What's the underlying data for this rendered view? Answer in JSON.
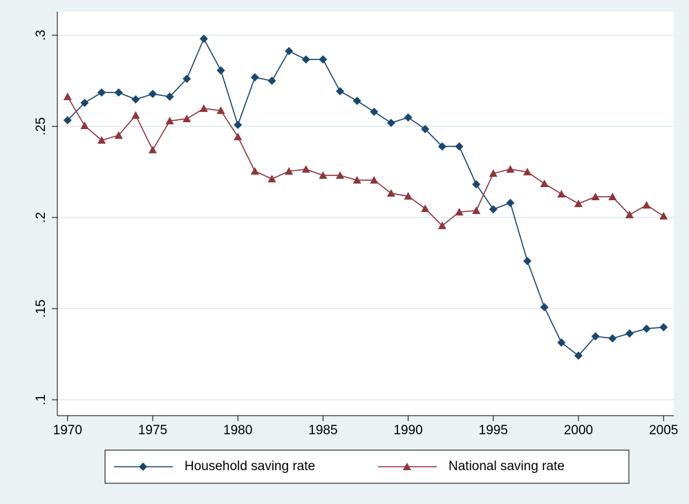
{
  "chart_data": {
    "type": "line",
    "x": [
      1970,
      1971,
      1972,
      1973,
      1974,
      1975,
      1976,
      1977,
      1978,
      1979,
      1980,
      1981,
      1982,
      1983,
      1984,
      1985,
      1986,
      1987,
      1988,
      1989,
      1990,
      1991,
      1992,
      1993,
      1994,
      1995,
      1996,
      1997,
      1998,
      1999,
      2000,
      2001,
      2002,
      2003,
      2004,
      2005
    ],
    "series": [
      {
        "name": "Household saving rate",
        "color": "#1a476f",
        "marker": "diamond",
        "values": [
          0.2534,
          0.2629,
          0.2686,
          0.2686,
          0.2648,
          0.2678,
          0.2663,
          0.2761,
          0.2981,
          0.2807,
          0.2508,
          0.2769,
          0.275,
          0.2913,
          0.2867,
          0.2867,
          0.2693,
          0.264,
          0.258,
          0.2519,
          0.2549,
          0.2485,
          0.239,
          0.239,
          0.2182,
          0.2045,
          0.208,
          0.1761,
          0.1508,
          0.1314,
          0.1242,
          0.1348,
          0.1337,
          0.1364,
          0.139,
          0.1398
        ]
      },
      {
        "name": "National saving rate",
        "color": "#90353b",
        "marker": "triangle",
        "values": [
          0.2663,
          0.2504,
          0.2424,
          0.2451,
          0.2561,
          0.2371,
          0.253,
          0.2542,
          0.2598,
          0.2587,
          0.2443,
          0.2254,
          0.2212,
          0.2254,
          0.2265,
          0.2231,
          0.2231,
          0.2205,
          0.2205,
          0.2133,
          0.2117,
          0.2049,
          0.1955,
          0.203,
          0.2038,
          0.2242,
          0.2265,
          0.225,
          0.2186,
          0.2129,
          0.2076,
          0.2114,
          0.2114,
          0.2015,
          0.2068,
          0.2008
        ]
      }
    ],
    "xlim": [
      1969.4,
      2005.6
    ],
    "xticks": [
      1970,
      1975,
      1980,
      1985,
      1990,
      1995,
      2000,
      2005
    ],
    "ylim": [
      0.0913,
      0.3129
    ],
    "yticks": [
      {
        "value": 0.1,
        "label": ".1"
      },
      {
        "value": 0.15,
        "label": ".15"
      },
      {
        "value": 0.2,
        "label": ".2"
      },
      {
        "value": 0.25,
        "label": ".25"
      },
      {
        "value": 0.3,
        "label": ".3"
      }
    ],
    "grid": true,
    "legend": "bottom"
  }
}
